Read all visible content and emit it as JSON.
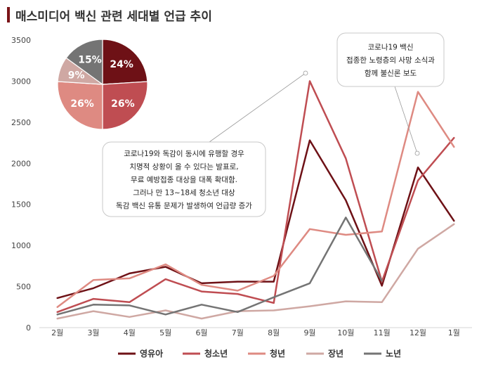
{
  "chart_data": {
    "type": "line",
    "title": "매스미디어 백신 관련  세대별 언급 추이",
    "categories": [
      "2월",
      "3월",
      "4월",
      "5월",
      "6월",
      "7월",
      "8월",
      "9월",
      "10월",
      "11월",
      "12월",
      "1월"
    ],
    "ylim": [
      0,
      3500
    ],
    "yticks": [
      0,
      500,
      1000,
      1500,
      2000,
      2500,
      3000,
      3500
    ],
    "grid": false,
    "legend_position": "bottom",
    "series": [
      {
        "name": "영유아",
        "color": "#6e1116",
        "values": [
          360,
          480,
          660,
          740,
          540,
          560,
          560,
          2280,
          1550,
          510,
          1950,
          1300
        ]
      },
      {
        "name": "청소년",
        "color": "#bf4d52",
        "values": [
          190,
          350,
          310,
          590,
          440,
          410,
          300,
          3000,
          2060,
          560,
          1790,
          2310
        ]
      },
      {
        "name": "청년",
        "color": "#de8a82",
        "values": [
          250,
          580,
          600,
          770,
          520,
          450,
          630,
          1200,
          1130,
          1170,
          2870,
          2200
        ]
      },
      {
        "name": "장년",
        "color": "#cfa8a3",
        "values": [
          110,
          200,
          130,
          210,
          110,
          200,
          210,
          260,
          320,
          310,
          960,
          1260
        ]
      },
      {
        "name": "노년",
        "color": "#747474",
        "values": [
          160,
          280,
          270,
          160,
          280,
          190,
          370,
          540,
          1340,
          570,
          null,
          null
        ]
      }
    ],
    "pie": {
      "slices": [
        {
          "label": "24%",
          "value": 24,
          "color": "#6e1116"
        },
        {
          "label": "26%",
          "value": 26,
          "color": "#bf4d52"
        },
        {
          "label": "26%",
          "value": 26,
          "color": "#de8a82"
        },
        {
          "label": "9%",
          "value": 9,
          "color": "#cfa8a3"
        },
        {
          "label": "15%",
          "value": 15,
          "color": "#747474"
        }
      ]
    },
    "annotations": [
      {
        "text": [
          "코로나19와 독감이 동시에 유행할 경우",
          "치명적 상황이 올 수 있다는 발표로,",
          "무료 예방접종 대상을 대폭 확대함.",
          "그러나 만 13~18세 청소년 대상",
          "독감 백신 유통 문제가 발생하여 언급량 증가"
        ],
        "target_category": "9월",
        "target_value": 3000
      },
      {
        "text": [
          "코로나19 백신",
          "접종한 노령층의 사망 소식과",
          "함께 불신론 보도"
        ],
        "target_category": "12월",
        "target_value": 2100
      }
    ]
  }
}
